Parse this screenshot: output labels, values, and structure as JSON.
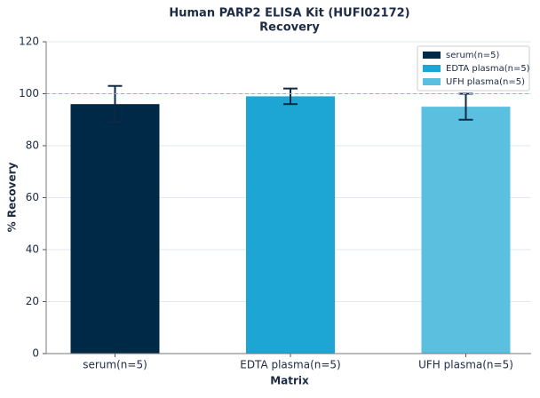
{
  "chart_data": {
    "type": "bar",
    "title": "Human PARP2 ELISA Kit (HUFI02172)",
    "subtitle": "Recovery",
    "x_label": "Matrix",
    "y_label": "% Recovery",
    "categories": [
      "serum(n=5)",
      "EDTA plasma(n=5)",
      "UFH plasma(n=5)"
    ],
    "values": [
      96,
      99,
      95
    ],
    "errors": [
      7,
      3,
      5
    ],
    "colors": [
      "#002847",
      "#1da5d3",
      "#5bbfe0"
    ],
    "reference_line": 100,
    "ylim": [
      0,
      120
    ],
    "yticks": [
      0,
      20,
      40,
      60,
      80,
      100,
      120
    ],
    "grid": true,
    "legend": "upper right"
  }
}
